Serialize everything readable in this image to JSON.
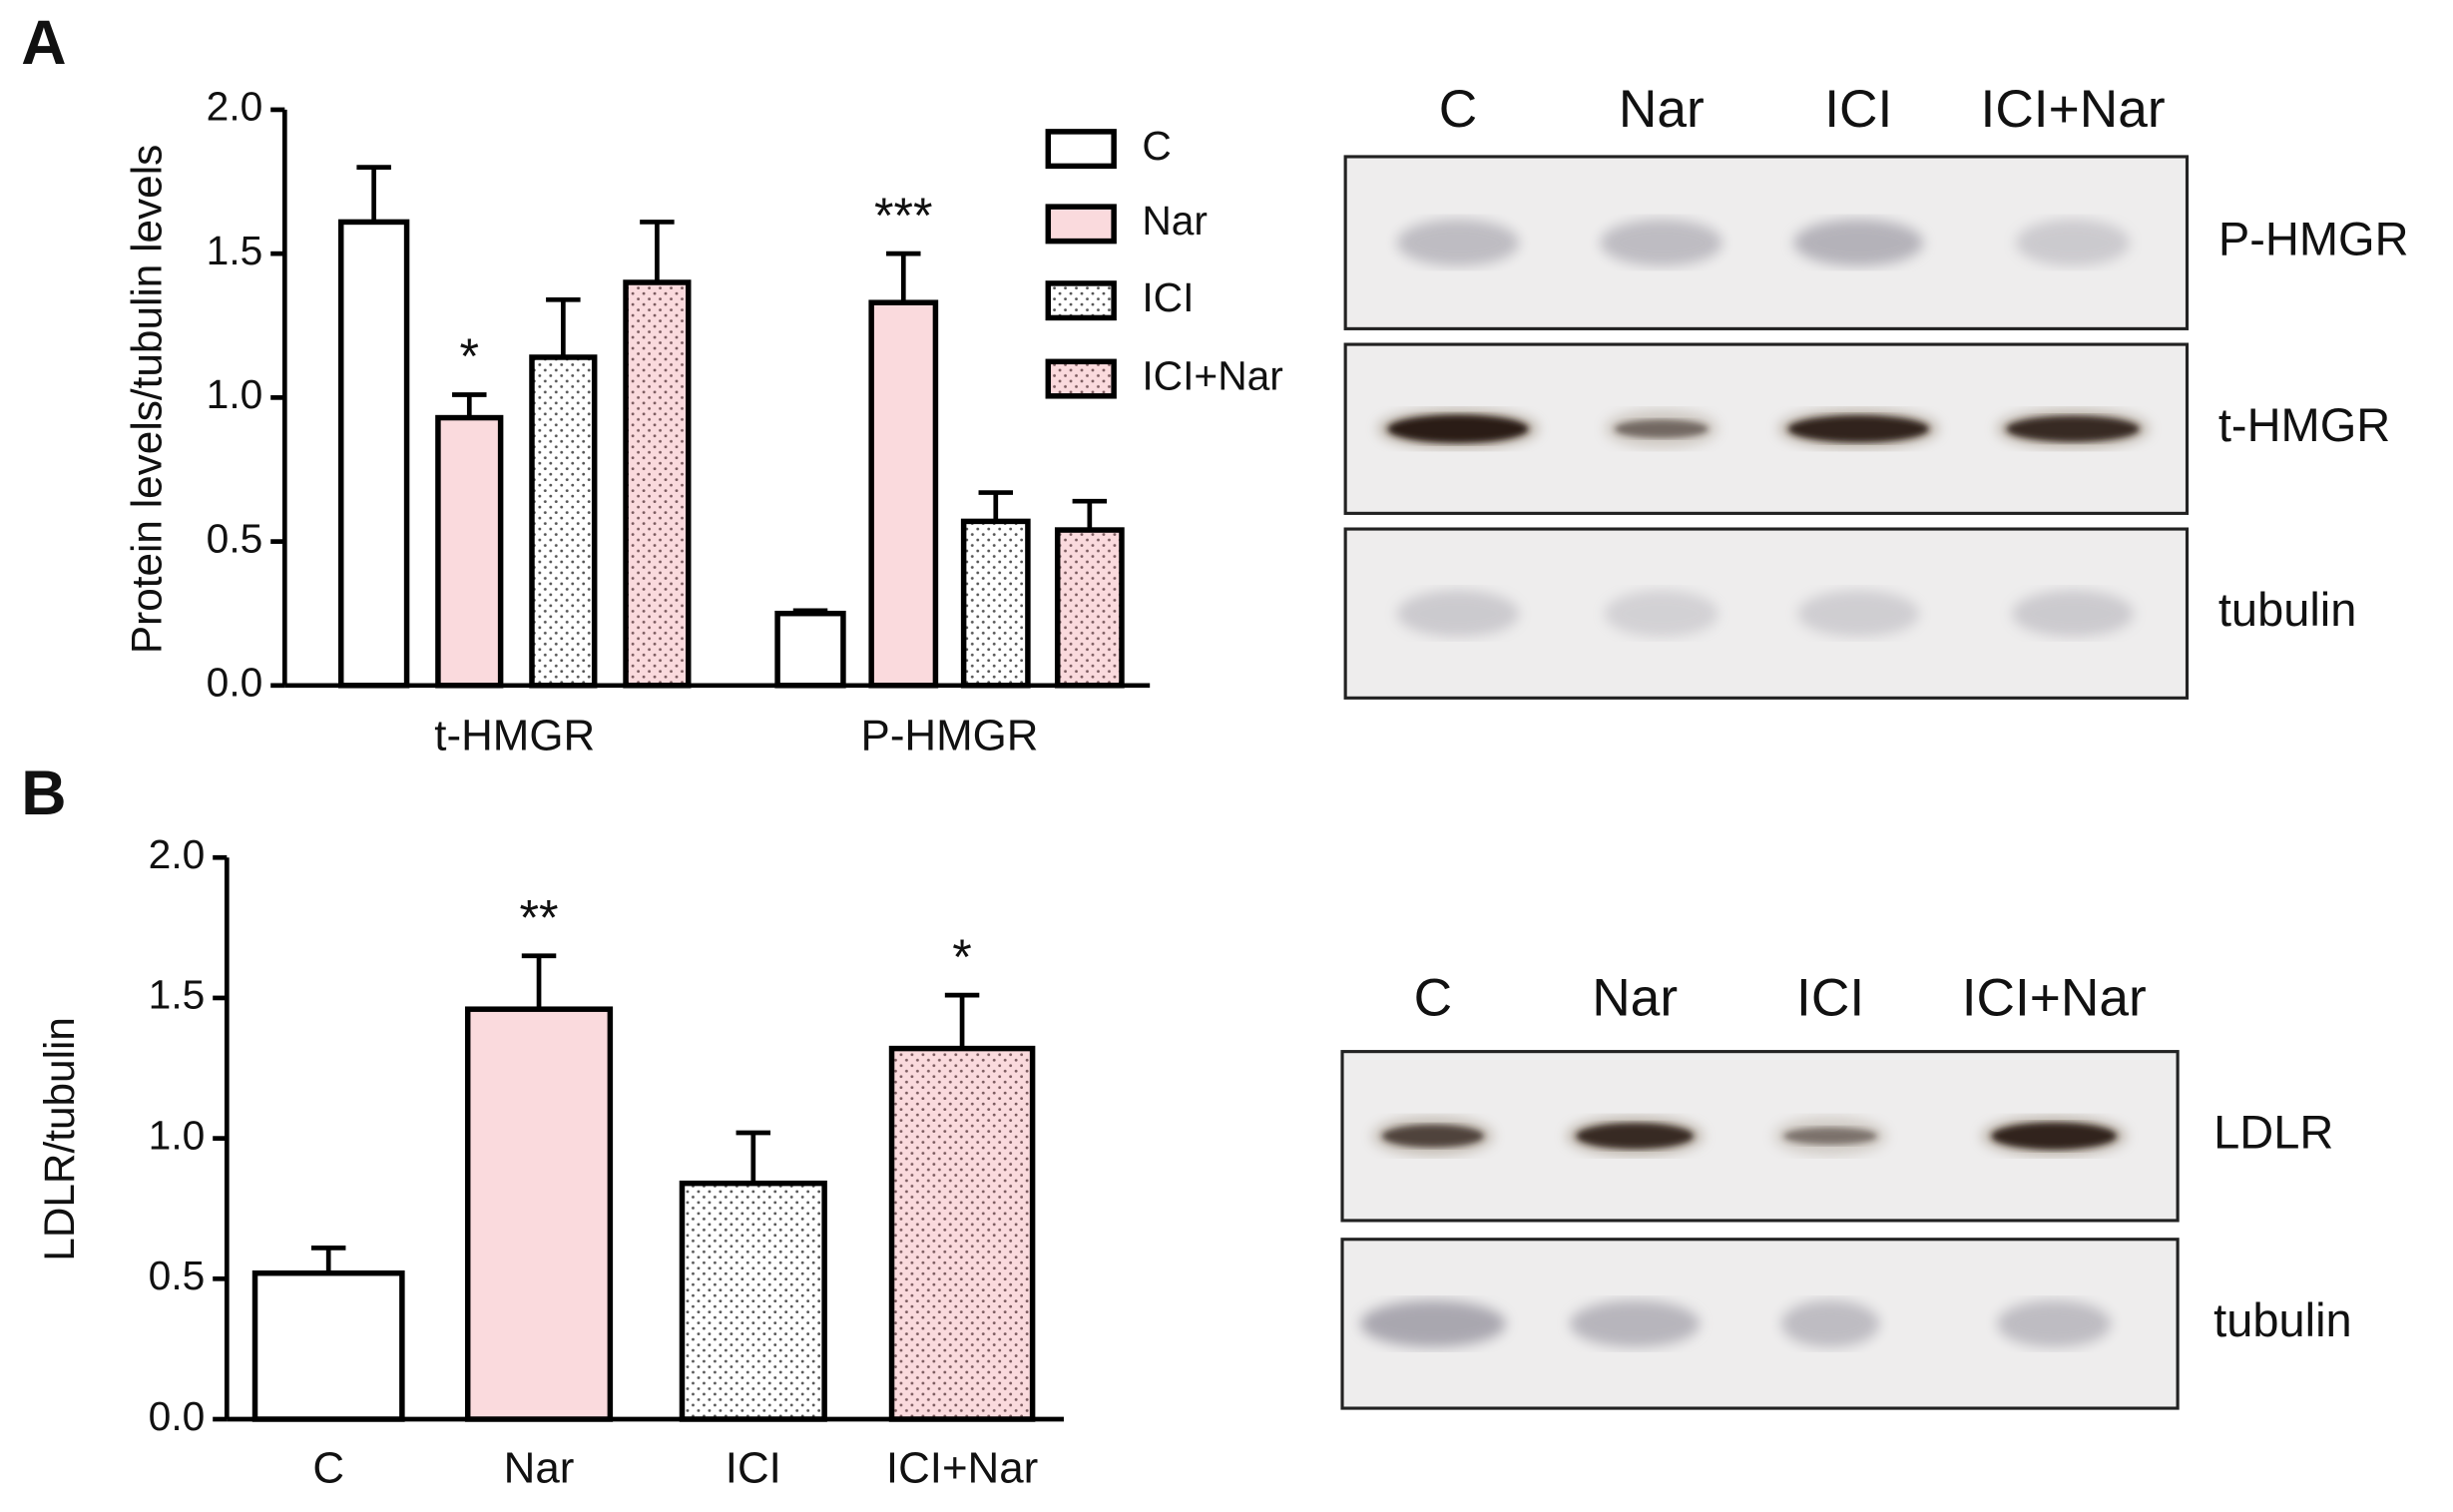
{
  "chart_data": [
    {
      "type": "bar",
      "panel_label": "A",
      "ylabel": "Protein levels/tubulin levels",
      "categories": [
        "t-HMGR",
        "P-HMGR"
      ],
      "series": [
        {
          "name": "C",
          "color": "#ffffff",
          "pattern": "none",
          "values": [
            1.61,
            0.25
          ],
          "errors": [
            0.19,
            0.01
          ],
          "annotations": [
            null,
            null
          ]
        },
        {
          "name": "Nar",
          "color": "#fadadd",
          "pattern": "none",
          "values": [
            0.93,
            1.33
          ],
          "errors": [
            0.08,
            0.17
          ],
          "annotations": [
            "*",
            "***"
          ]
        },
        {
          "name": "ICI",
          "color": "#ffffff",
          "pattern": "dots",
          "values": [
            1.14,
            0.57
          ],
          "errors": [
            0.2,
            0.1
          ],
          "annotations": [
            null,
            null
          ]
        },
        {
          "name": "ICI+Nar",
          "color": "#fadadd",
          "pattern": "dots",
          "values": [
            1.4,
            0.54
          ],
          "errors": [
            0.21,
            0.1
          ],
          "annotations": [
            null,
            null
          ]
        }
      ],
      "ylim": [
        0,
        2
      ],
      "yticks": [
        {
          "value": 0,
          "label": "0.0"
        },
        {
          "value": 0.5,
          "label": "0.5"
        },
        {
          "value": 1,
          "label": "1.0"
        },
        {
          "value": 1.5,
          "label": "1.5"
        },
        {
          "value": 2,
          "label": "2.0"
        }
      ],
      "legend": "top-right",
      "blot": {
        "lanes": [
          "C",
          "Nar",
          "ICI",
          "ICI+Nar"
        ],
        "rows": [
          "P-HMGR",
          "t-HMGR",
          "tubulin"
        ]
      }
    },
    {
      "type": "bar",
      "panel_label": "B",
      "ylabel": "LDLR/tubulin",
      "categories": [
        "C",
        "Nar",
        "ICI",
        "ICI+Nar"
      ],
      "values": [
        0.52,
        1.46,
        0.84,
        1.32
      ],
      "errors": [
        0.09,
        0.19,
        0.18,
        0.19
      ],
      "annotations": [
        null,
        "**",
        null,
        "*"
      ],
      "colors": [
        "#ffffff",
        "#fadadd",
        "#ffffff",
        "#fadadd"
      ],
      "patterns": [
        "none",
        "none",
        "dots",
        "dots"
      ],
      "ylim": [
        0,
        2
      ],
      "yticks": [
        {
          "value": 0,
          "label": "0.0"
        },
        {
          "value": 0.5,
          "label": "0.5"
        },
        {
          "value": 1,
          "label": "1.0"
        },
        {
          "value": 1.5,
          "label": "1.5"
        },
        {
          "value": 2,
          "label": "2.0"
        }
      ],
      "blot": {
        "lanes": [
          "C",
          "Nar",
          "ICI",
          "ICI+Nar"
        ],
        "rows": [
          "LDLR",
          "tubulin"
        ]
      }
    }
  ]
}
